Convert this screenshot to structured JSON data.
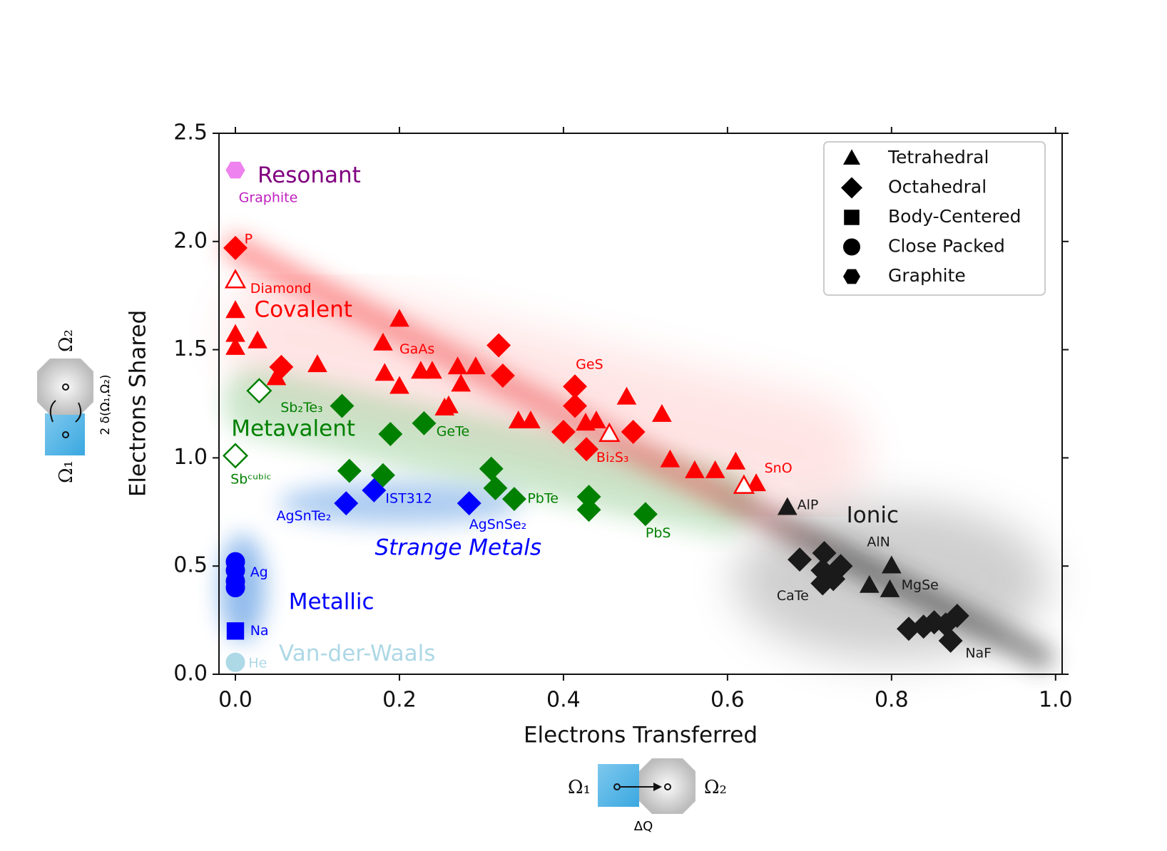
{
  "chart_data": {
    "type": "scatter",
    "x_label": "Electrons Transferred",
    "y_label": "Electrons Shared",
    "xlim": [
      -0.02,
      1.008
    ],
    "ylim": [
      0,
      2.5
    ],
    "xticks": [
      {
        "value": 0,
        "label": "0.0"
      },
      0.2,
      0.4,
      0.6,
      0.8,
      {
        "value": 1,
        "label": "1.0"
      }
    ],
    "yticks": [
      {
        "value": 0,
        "label": "0.0"
      },
      0.5,
      {
        "value": 1,
        "label": "1.0"
      },
      1.5,
      {
        "value": 2,
        "label": "2.0"
      },
      2.5
    ],
    "legend_corner": "upper right",
    "legend": [
      {
        "name": "Tetrahedral",
        "shape": "triangle"
      },
      {
        "name": "Octahedral",
        "shape": "diamond"
      },
      {
        "name": "Body-Centered",
        "shape": "square"
      },
      {
        "name": "Close Packed",
        "shape": "circle"
      },
      {
        "name": "Graphite",
        "shape": "hexagon"
      }
    ],
    "series": [
      {
        "shape": "triangle",
        "color": "#ff0000",
        "x": [
          0.0,
          0.0,
          0.0,
          0.027,
          0.05,
          0.1,
          0.2,
          0.18,
          0.182,
          0.2,
          0.226,
          0.24,
          0.271,
          0.293,
          0.275,
          0.255,
          0.26,
          0.345,
          0.36,
          0.427,
          0.44,
          0.477,
          0.52,
          0.53,
          0.56,
          0.585,
          0.61,
          0.635
        ],
        "y": [
          1.68,
          1.57,
          1.51,
          1.54,
          1.37,
          1.43,
          1.64,
          1.53,
          1.39,
          1.33,
          1.4,
          1.4,
          1.42,
          1.42,
          1.34,
          1.23,
          1.24,
          1.17,
          1.17,
          1.16,
          1.17,
          1.28,
          1.2,
          0.99,
          0.94,
          0.94,
          0.98,
          0.88
        ]
      },
      {
        "shape": "triangle",
        "color": "#ff0000",
        "open": true,
        "x": [
          0.0,
          0.456,
          0.62
        ],
        "y": [
          1.82,
          1.11,
          0.87
        ]
      },
      {
        "shape": "triangle",
        "color": "#1a1a1a",
        "x": [
          0.673,
          0.8,
          0.773,
          0.798
        ],
        "y": [
          0.77,
          0.5,
          0.41,
          0.39
        ]
      },
      {
        "shape": "diamond",
        "color": "#ff0000",
        "x": [
          0.0,
          0.056,
          0.321,
          0.326,
          0.414,
          0.414,
          0.4,
          0.428,
          0.485
        ],
        "y": [
          1.97,
          1.42,
          1.52,
          1.38,
          1.33,
          1.24,
          1.12,
          1.04,
          1.12
        ]
      },
      {
        "shape": "diamond",
        "color": "#008000",
        "x": [
          0.13,
          0.189,
          0.23,
          0.139,
          0.18,
          0.312,
          0.317,
          0.34,
          0.431,
          0.431,
          0.5
        ],
        "y": [
          1.24,
          1.11,
          1.16,
          0.94,
          0.92,
          0.95,
          0.86,
          0.81,
          0.82,
          0.76,
          0.74
        ]
      },
      {
        "shape": "diamond",
        "color": "#008000",
        "open": true,
        "x": [
          0.029,
          0.0
        ],
        "y": [
          1.31,
          1.01
        ]
      },
      {
        "shape": "diamond",
        "color": "#0000ff",
        "x": [
          0.135,
          0.169,
          0.285
        ],
        "y": [
          0.79,
          0.85,
          0.79
        ]
      },
      {
        "shape": "diamond",
        "color": "#1a1a1a",
        "x": [
          0.688,
          0.718,
          0.738,
          0.716,
          0.729,
          0.716,
          0.821,
          0.839,
          0.852,
          0.866,
          0.88,
          0.872
        ],
        "y": [
          0.53,
          0.56,
          0.5,
          0.48,
          0.44,
          0.42,
          0.21,
          0.22,
          0.24,
          0.23,
          0.27,
          0.155
        ]
      },
      {
        "shape": "square",
        "color": "#0000ff",
        "x": [
          0.0
        ],
        "y": [
          0.2
        ]
      },
      {
        "shape": "circle",
        "color": "#0000ff",
        "x": [
          0.0,
          0.0,
          0.0,
          0.0
        ],
        "y": [
          0.52,
          0.48,
          0.43,
          0.4
        ]
      },
      {
        "shape": "circle",
        "color": "#add8e6",
        "x": [
          0.0
        ],
        "y": [
          0.055
        ]
      },
      {
        "shape": "hexagon",
        "color": "#ee82ee",
        "x": [
          0.0
        ],
        "y": [
          2.33
        ]
      }
    ],
    "region_labels": [
      {
        "text": "Resonant",
        "color": "#800080",
        "x": 0.027,
        "y": 2.3
      },
      {
        "text": "Covalent",
        "color": "#ff0000",
        "x": 0.023,
        "y": 1.68
      },
      {
        "text": "Metavalent",
        "color": "#008000",
        "x": -0.005,
        "y": 1.13
      },
      {
        "text": "Strange Metals",
        "color": "#0000ff",
        "x": 0.17,
        "y": 0.58,
        "italic": true
      },
      {
        "text": "Metallic",
        "color": "#0000ff",
        "x": 0.065,
        "y": 0.33
      },
      {
        "text": "Van-der-Waals",
        "color": "#add8e6",
        "x": 0.053,
        "y": 0.09
      },
      {
        "text": "Ionic",
        "color": "#1a1a1a",
        "x": 0.745,
        "y": 0.73
      }
    ],
    "point_labels": [
      {
        "text": "Graphite",
        "color": "#c020c0",
        "x": 0.004,
        "y": 2.2
      },
      {
        "text": "P",
        "color": "#ff0000",
        "x": 0.011,
        "y": 2.01
      },
      {
        "text": "Diamond",
        "color": "#ff0000",
        "x": 0.018,
        "y": 1.78
      },
      {
        "text": "GaAs",
        "color": "#ff0000",
        "x": 0.2,
        "y": 1.5
      },
      {
        "text": "GeS",
        "color": "#ff0000",
        "x": 0.415,
        "y": 1.43
      },
      {
        "text": "Sb₂Te₃",
        "color": "#008000",
        "x": 0.055,
        "y": 1.23
      },
      {
        "text": "GeTe",
        "color": "#008000",
        "x": 0.245,
        "y": 1.12
      },
      {
        "text": "Bi₂S₃",
        "color": "#ff0000",
        "x": 0.44,
        "y": 1.0
      },
      {
        "text": "SnO",
        "color": "#ff0000",
        "x": 0.645,
        "y": 0.95
      },
      {
        "text": "Sbᶜᵘᵇⁱᶜ",
        "color": "#008000",
        "x": -0.006,
        "y": 0.9
      },
      {
        "text": "IST312",
        "color": "#0000ff",
        "x": 0.183,
        "y": 0.81
      },
      {
        "text": "AgSnTe₂",
        "color": "#0000ff",
        "x": 0.05,
        "y": 0.73
      },
      {
        "text": "PbTe",
        "color": "#008000",
        "x": 0.356,
        "y": 0.81
      },
      {
        "text": "AgSnSe₂",
        "color": "#0000ff",
        "x": 0.285,
        "y": 0.69
      },
      {
        "text": "PbS",
        "color": "#008000",
        "x": 0.5,
        "y": 0.65
      },
      {
        "text": "AlP",
        "color": "#1a1a1a",
        "x": 0.685,
        "y": 0.78
      },
      {
        "text": "AlN",
        "color": "#1a1a1a",
        "x": 0.77,
        "y": 0.61
      },
      {
        "text": "MgSe",
        "color": "#1a1a1a",
        "x": 0.812,
        "y": 0.41
      },
      {
        "text": "CaTe",
        "color": "#1a1a1a",
        "x": 0.66,
        "y": 0.36
      },
      {
        "text": "NaF",
        "color": "#1a1a1a",
        "x": 0.89,
        "y": 0.095
      },
      {
        "text": "Ag",
        "color": "#0000ff",
        "x": 0.018,
        "y": 0.47
      },
      {
        "text": "Na",
        "color": "#0000ff",
        "x": 0.018,
        "y": 0.2
      },
      {
        "text": "He",
        "color": "#add8e6",
        "x": 0.016,
        "y": 0.05
      }
    ]
  },
  "insets": {
    "left": {
      "top": "Ω₂",
      "bottom": "Ω₁",
      "side": "2 δ(Ω₁,Ω₂)"
    },
    "bottom": {
      "left": "Ω₁",
      "right": "Ω₂",
      "under": "ΔQ"
    }
  }
}
